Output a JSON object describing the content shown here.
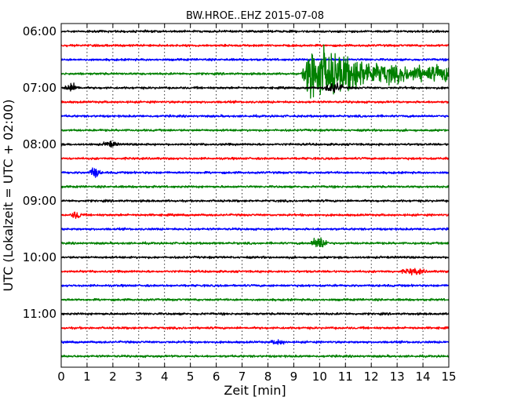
{
  "chart_data": {
    "type": "line",
    "title": "BW.HROE..EHZ 2015-07-08",
    "xlabel": "Zeit  [min]",
    "ylabel": "UTC (Lokalzeit = UTC + 02:00)",
    "xlim": [
      0,
      15
    ],
    "xticks": [
      0,
      1,
      2,
      3,
      4,
      5,
      6,
      7,
      8,
      9,
      10,
      11,
      12,
      13,
      14,
      15
    ],
    "y_tick_labels": [
      "06:00",
      "07:00",
      "08:00",
      "09:00",
      "10:00",
      "11:00"
    ],
    "row_interval_minutes": 15,
    "grid": "vertical dotted",
    "trace_colors": [
      "#000000",
      "#ff0000",
      "#0000ff",
      "#008000"
    ],
    "rows": [
      "06:00",
      "06:15",
      "06:30",
      "06:45",
      "07:00",
      "07:15",
      "07:30",
      "07:45",
      "08:00",
      "08:15",
      "08:30",
      "08:45",
      "09:00",
      "09:15",
      "09:30",
      "09:45",
      "10:00",
      "10:15",
      "10:30",
      "10:45",
      "11:00",
      "11:15",
      "11:30",
      "11:45"
    ],
    "events": [
      {
        "row": 4,
        "start_min": 0.0,
        "end_min": 0.8,
        "amplitude": 0.45
      },
      {
        "row": 3,
        "start_min": 9.3,
        "end_min": 15.0,
        "amplitude": 3.2,
        "clipped": true
      },
      {
        "row": 4,
        "start_min": 10.1,
        "end_min": 11.0,
        "amplitude": 0.6
      },
      {
        "row": 8,
        "start_min": 1.5,
        "end_min": 2.3,
        "amplitude": 0.35
      },
      {
        "row": 10,
        "start_min": 1.0,
        "end_min": 1.6,
        "amplitude": 0.55
      },
      {
        "row": 13,
        "start_min": 0.3,
        "end_min": 0.9,
        "amplitude": 0.45
      },
      {
        "row": 15,
        "start_min": 9.6,
        "end_min": 10.4,
        "amplitude": 0.7
      },
      {
        "row": 17,
        "start_min": 13.0,
        "end_min": 14.3,
        "amplitude": 0.35
      },
      {
        "row": 22,
        "start_min": 8.0,
        "end_min": 8.8,
        "amplitude": 0.3
      }
    ]
  }
}
